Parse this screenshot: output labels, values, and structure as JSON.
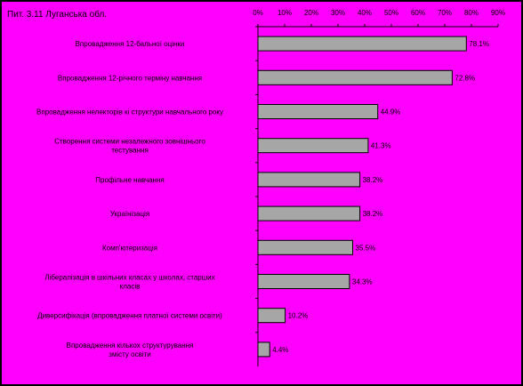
{
  "colors": {
    "background": "#FF00FF",
    "border": "#000000",
    "bar_fill": "#A6A6A6",
    "bar_stroke": "#000000",
    "text": "#000000"
  },
  "chart_data": {
    "type": "bar",
    "orientation": "horizontal",
    "title": "Пит. 3.11 Луганська обл.",
    "xlim": [
      0,
      90
    ],
    "x_ticks": [
      "0%",
      "10%",
      "20%",
      "30%",
      "40%",
      "50%",
      "60%",
      "70%",
      "80%",
      "90%"
    ],
    "x_axis_position": "top",
    "grid": false,
    "categories": [
      [
        "Впровадження 12-бальної оцінки"
      ],
      [
        "Впровадження 12-річного терміну навчання"
      ],
      [
        "Впровадження нелекторів кі структури навчального року"
      ],
      [
        "Створення системи незалежного зовнішнього",
        "тестування"
      ],
      [
        "Профільне навчання"
      ],
      [
        "Українізація"
      ],
      [
        "Комп'ютеризація"
      ],
      [
        "Лібералізація в шкільних класах у школах, старших",
        "класів"
      ],
      [
        "Диверсифікація (впровадження платної системи освіти)"
      ],
      [
        "Впровадження кількох структурування",
        "змісту освіти"
      ]
    ],
    "values": [
      78.1,
      72.8,
      44.9,
      41.3,
      38.2,
      38.2,
      35.5,
      34.3,
      10.2,
      4.4
    ],
    "value_labels": [
      "78.1%",
      "72.8%",
      "44.9%",
      "41.3%",
      "38.2%",
      "38.2%",
      "35.5%",
      "34.3%",
      "10.2%",
      "4.4%"
    ]
  }
}
